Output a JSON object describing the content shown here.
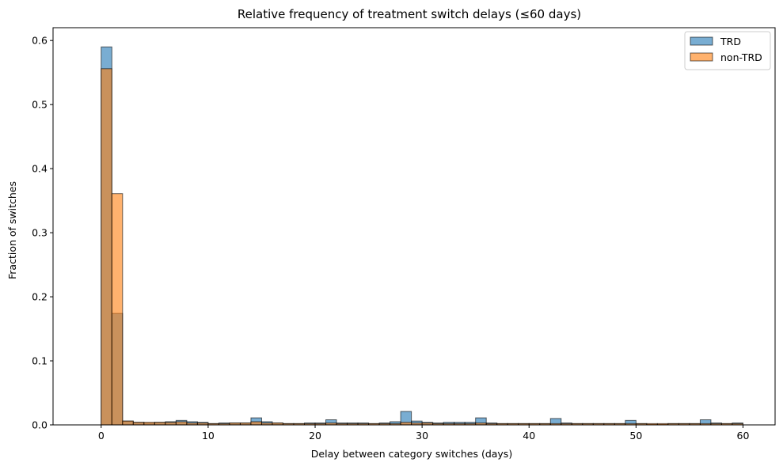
{
  "chart_data": {
    "type": "bar",
    "title": "Relative frequency of treatment switch delays (≤60 days)",
    "xlabel": "Delay between category switches (days)",
    "ylabel": "Fraction of switches",
    "xlim": [
      -4.5,
      63.0
    ],
    "ylim": [
      0,
      0.62
    ],
    "bin_width": 1,
    "x_ticks": [
      0,
      10,
      20,
      30,
      40,
      50,
      60
    ],
    "x_tick_labels": [
      "0",
      "10",
      "20",
      "30",
      "40",
      "50",
      "60"
    ],
    "y_ticks": [
      0.0,
      0.1,
      0.2,
      0.3,
      0.4,
      0.5,
      0.6
    ],
    "y_tick_labels": [
      "0.0",
      "0.1",
      "0.2",
      "0.3",
      "0.4",
      "0.5",
      "0.6"
    ],
    "legend_position": "top-right",
    "grid": false,
    "bin_edges": [
      0,
      1,
      2,
      3,
      4,
      5,
      6,
      7,
      8,
      9,
      10,
      11,
      12,
      13,
      14,
      15,
      16,
      17,
      18,
      19,
      20,
      21,
      22,
      23,
      24,
      25,
      26,
      27,
      28,
      29,
      30,
      31,
      32,
      33,
      34,
      35,
      36,
      37,
      38,
      39,
      40,
      41,
      42,
      43,
      44,
      45,
      46,
      47,
      48,
      49,
      50,
      51,
      52,
      53,
      54,
      55,
      56,
      57,
      58,
      59,
      60
    ],
    "series": [
      {
        "name": "TRD",
        "color": "#1f77b4",
        "values": [
          0.59,
          0.174,
          0.006,
          0.004,
          0.003,
          0.004,
          0.005,
          0.007,
          0.005,
          0.004,
          0.002,
          0.003,
          0.003,
          0.003,
          0.011,
          0.005,
          0.003,
          0.002,
          0.002,
          0.003,
          0.003,
          0.008,
          0.003,
          0.003,
          0.003,
          0.002,
          0.003,
          0.005,
          0.021,
          0.006,
          0.004,
          0.003,
          0.004,
          0.004,
          0.004,
          0.011,
          0.003,
          0.002,
          0.002,
          0.002,
          0.002,
          0.002,
          0.01,
          0.003,
          0.002,
          0.002,
          0.002,
          0.002,
          0.002,
          0.007,
          0.002,
          0.001,
          0.001,
          0.002,
          0.002,
          0.002,
          0.008,
          0.003,
          0.002,
          0.003
        ]
      },
      {
        "name": "non-TRD",
        "color": "#ff7f0e",
        "values": [
          0.556,
          0.361,
          0.006,
          0.004,
          0.004,
          0.004,
          0.004,
          0.005,
          0.003,
          0.003,
          0.002,
          0.002,
          0.003,
          0.003,
          0.005,
          0.003,
          0.003,
          0.002,
          0.002,
          0.002,
          0.002,
          0.003,
          0.002,
          0.002,
          0.002,
          0.002,
          0.002,
          0.002,
          0.004,
          0.003,
          0.003,
          0.002,
          0.002,
          0.002,
          0.002,
          0.003,
          0.002,
          0.002,
          0.002,
          0.002,
          0.002,
          0.002,
          0.002,
          0.002,
          0.002,
          0.002,
          0.002,
          0.002,
          0.002,
          0.002,
          0.002,
          0.002,
          0.002,
          0.002,
          0.002,
          0.002,
          0.002,
          0.002,
          0.002,
          0.002
        ]
      }
    ]
  }
}
